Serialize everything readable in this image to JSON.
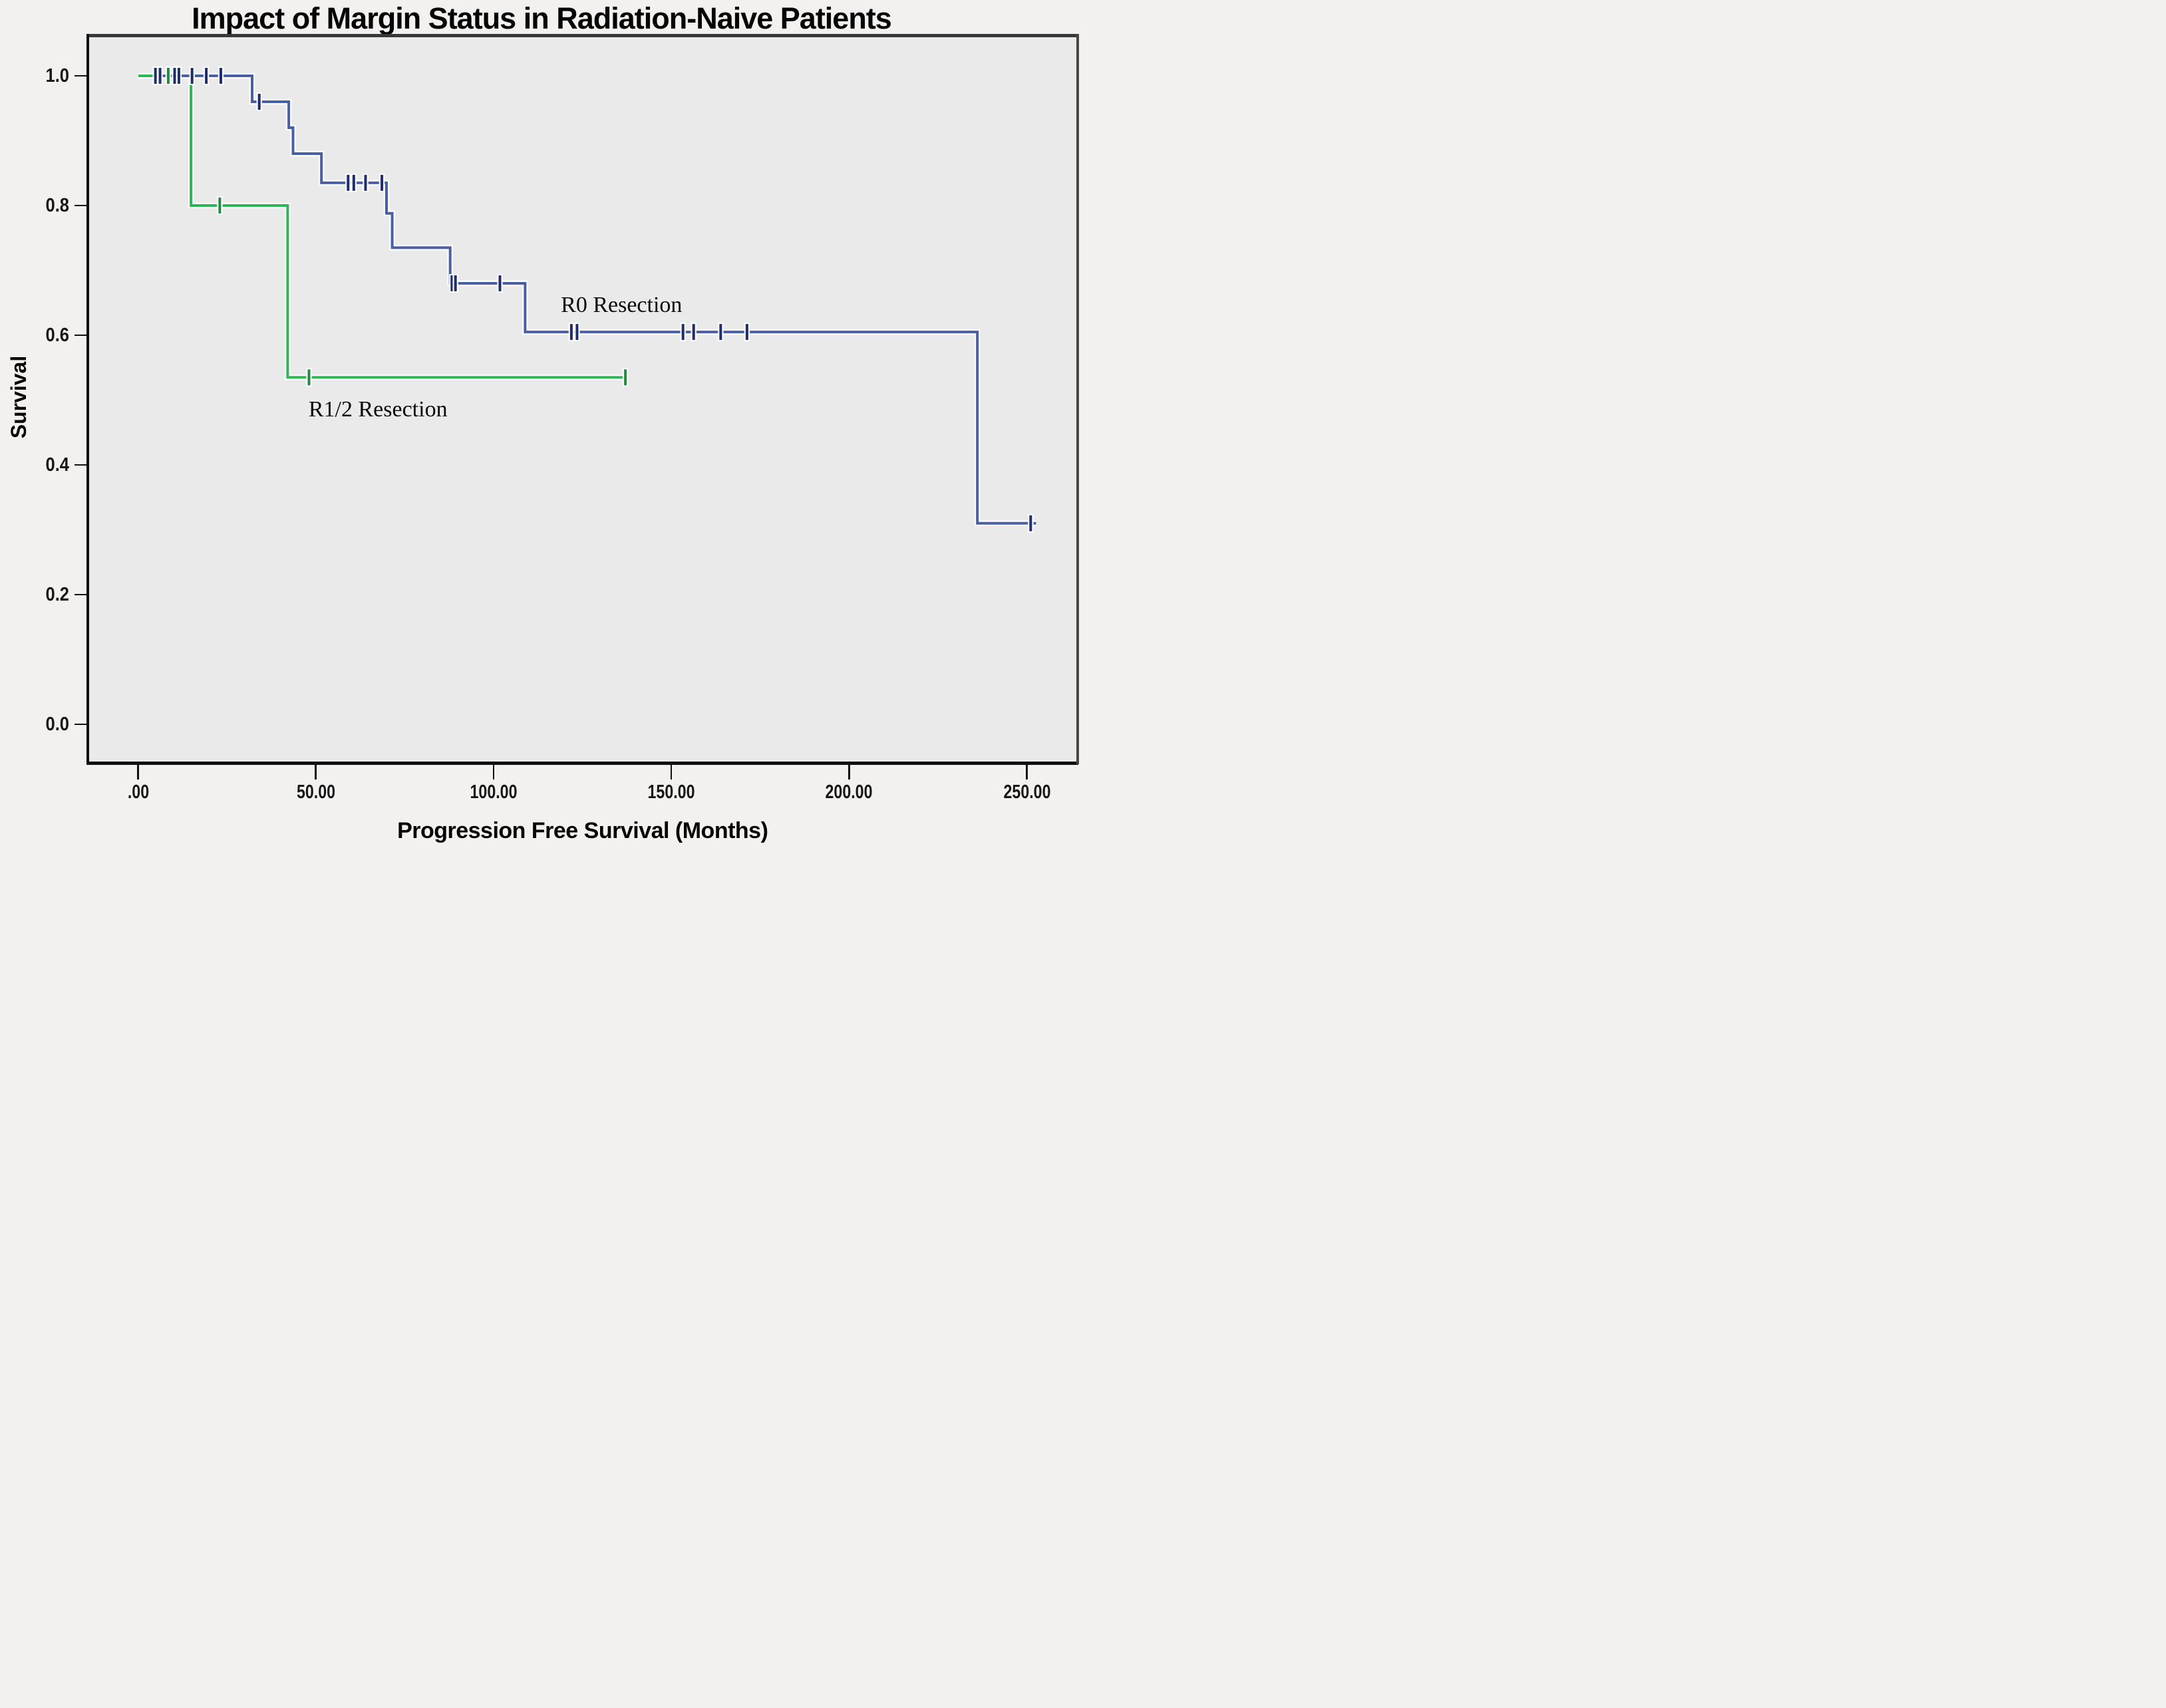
{
  "title": "Impact of Margin Status in Radiation-Naive Patients",
  "chart_data": {
    "type": "line",
    "subtype": "kaplan-meier-step",
    "title": "Impact of Margin Status in Radiation-Naive Patients",
    "xlabel": "Progression Free Survival (Months)",
    "ylabel": "Survival",
    "x_ticks": [
      0,
      50,
      100,
      150,
      200,
      250
    ],
    "x_tick_labels": [
      ".00",
      "50.00",
      "100.00",
      "150.00",
      "200.00",
      "250.00"
    ],
    "y_ticks": [
      1.0,
      0.8,
      0.6,
      0.4,
      0.2,
      0.0
    ],
    "y_tick_labels": [
      "1.0",
      "0.8",
      "0.6",
      "0.4",
      "0.2",
      "0.0"
    ],
    "xlim": [
      -14,
      264
    ],
    "ylim": [
      -0.057,
      1.06
    ],
    "grid": false,
    "legend_position": "inline-curve-labels",
    "background_color": "#ebeaea",
    "series": [
      {
        "name": "R0 Resection",
        "label": "R0 Resection",
        "line_color": "#4a5ea4",
        "censor_color": "#1f2d6b",
        "label_anchor_month": 136,
        "label_anchor_survival": 0.646,
        "steps": [
          [
            0,
            1.0
          ],
          [
            32,
            1.0
          ],
          [
            32,
            0.96
          ],
          [
            42.3,
            0.96
          ],
          [
            42.3,
            0.92
          ],
          [
            43.5,
            0.92
          ],
          [
            43.5,
            0.88
          ],
          [
            51.5,
            0.88
          ],
          [
            51.5,
            0.835
          ],
          [
            69.8,
            0.835
          ],
          [
            69.8,
            0.788
          ],
          [
            71.4,
            0.788
          ],
          [
            71.4,
            0.735
          ],
          [
            87.7,
            0.735
          ],
          [
            87.7,
            0.68
          ],
          [
            108.8,
            0.68
          ],
          [
            108.8,
            0.605
          ],
          [
            236,
            0.605
          ],
          [
            236,
            0.31
          ],
          [
            252.5,
            0.31
          ]
        ],
        "censors": [
          [
            4.8,
            1.0
          ],
          [
            6.1,
            1.0
          ],
          [
            10.2,
            1.0
          ],
          [
            11.4,
            1.0
          ],
          [
            15.1,
            1.0
          ],
          [
            19.1,
            1.0
          ],
          [
            23.2,
            1.0
          ],
          [
            34,
            0.96
          ],
          [
            59,
            0.835
          ],
          [
            60.6,
            0.835
          ],
          [
            63.9,
            0.835
          ],
          [
            68.5,
            0.835
          ],
          [
            88.2,
            0.68
          ],
          [
            89.2,
            0.68
          ],
          [
            101.7,
            0.68
          ],
          [
            121.8,
            0.605
          ],
          [
            123.4,
            0.605
          ],
          [
            153.2,
            0.605
          ],
          [
            156.2,
            0.605
          ],
          [
            163.8,
            0.605
          ],
          [
            171.2,
            0.605
          ],
          [
            251,
            0.31
          ]
        ]
      },
      {
        "name": "R1/2 Resection",
        "label": "R1/2 Resection",
        "line_color": "#2fb457",
        "censor_color": "#1f8c3f",
        "label_anchor_month": 67.5,
        "label_anchor_survival": 0.485,
        "steps": [
          [
            0,
            1.0
          ],
          [
            14.8,
            1.0
          ],
          [
            14.8,
            0.8
          ],
          [
            42,
            0.8
          ],
          [
            42,
            0.535
          ],
          [
            137.6,
            0.535
          ]
        ],
        "censors": [
          [
            8.4,
            1.0
          ],
          [
            22.9,
            0.8
          ],
          [
            48,
            0.535
          ],
          [
            137,
            0.535
          ]
        ],
        "overlay_start_segment": [
          [
            0,
            1.0
          ],
          [
            4.2,
            1.0
          ]
        ]
      }
    ]
  }
}
